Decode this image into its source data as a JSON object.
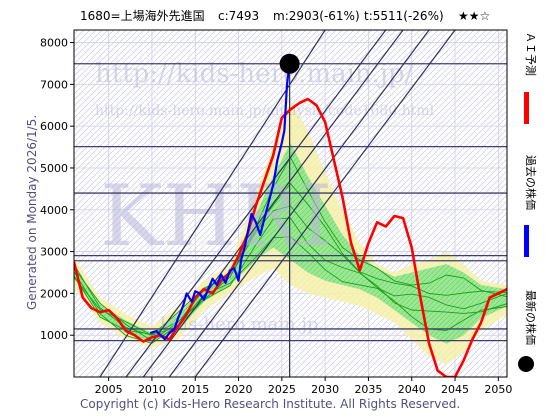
{
  "header": {
    "title": "1680=上場海外先進国",
    "current": "c:7493",
    "middle": "m:2903(-61%)",
    "target": "t:5511(-26%)",
    "stars": "★★☆"
  },
  "generated_label": "Generated on Monday 2026/1/5.",
  "copyright": "Copyright (c) Kids-Hero Research Institute. All Rights Reserved.",
  "watermarks": {
    "main": "KHRI",
    "url1": "http://kids-hero.main.jp/",
    "url2": "http://kids-hero.main.jp/analysis/code1680.html",
    "url3": "kids-hero.main.jp"
  },
  "legend": {
    "ai": "ＡＩ予測",
    "past": "過去の株価",
    "latest": "最新の株価"
  },
  "colors": {
    "ai": "#ff0000",
    "past": "#0000ff",
    "band_yellow": "#f6f0a8",
    "band_green": "#88ee88",
    "green_line": "#1aa01a",
    "hline": "#404070",
    "trend": "#303060"
  },
  "chart_data": {
    "type": "line",
    "xlim": [
      2001,
      2051
    ],
    "ylim": [
      0,
      8300
    ],
    "x_ticks": [
      2005,
      2010,
      2015,
      2020,
      2025,
      2030,
      2035,
      2040,
      2045,
      2050
    ],
    "y_ticks": [
      1000,
      2000,
      3000,
      4000,
      5000,
      6000,
      7000,
      8000
    ],
    "current_point": {
      "x": 2025.9,
      "y": 7493
    },
    "horizontal_levels": [
      7493,
      5511,
      4400,
      2780,
      2903,
      1150,
      870
    ],
    "ai_forecast": [
      [
        2001,
        2750
      ],
      [
        2002,
        1900
      ],
      [
        2003,
        1650
      ],
      [
        2004,
        1550
      ],
      [
        2005,
        1600
      ],
      [
        2006,
        1400
      ],
      [
        2007,
        1100
      ],
      [
        2008,
        1000
      ],
      [
        2009,
        850
      ],
      [
        2010,
        950
      ],
      [
        2011,
        1000
      ],
      [
        2012,
        900
      ],
      [
        2013,
        1200
      ],
      [
        2014,
        1500
      ],
      [
        2015,
        1900
      ],
      [
        2016,
        2100
      ],
      [
        2017,
        2000
      ],
      [
        2018,
        2300
      ],
      [
        2019,
        2500
      ],
      [
        2020,
        2900
      ],
      [
        2021,
        3400
      ],
      [
        2022,
        4100
      ],
      [
        2023,
        4700
      ],
      [
        2024,
        5300
      ],
      [
        2025,
        6200
      ],
      [
        2026,
        6400
      ],
      [
        2027,
        6550
      ],
      [
        2028,
        6650
      ],
      [
        2029,
        6500
      ],
      [
        2030,
        6100
      ],
      [
        2031,
        5200
      ],
      [
        2032,
        4300
      ],
      [
        2033,
        3200
      ],
      [
        2034,
        2550
      ],
      [
        2035,
        3200
      ],
      [
        2036,
        3700
      ],
      [
        2037,
        3600
      ],
      [
        2038,
        3850
      ],
      [
        2039,
        3800
      ],
      [
        2040,
        3100
      ],
      [
        2041,
        1900
      ],
      [
        2042,
        800
      ],
      [
        2043,
        150
      ],
      [
        2044,
        0
      ],
      [
        2045,
        0
      ],
      [
        2046,
        400
      ],
      [
        2047,
        900
      ],
      [
        2048,
        1300
      ],
      [
        2049,
        1900
      ],
      [
        2050,
        2000
      ],
      [
        2051,
        2100
      ]
    ],
    "past_prices": [
      [
        2009.8,
        1050
      ],
      [
        2010.5,
        1100
      ],
      [
        2011,
        1000
      ],
      [
        2011.5,
        900
      ],
      [
        2012,
        1050
      ],
      [
        2012.6,
        1150
      ],
      [
        2013,
        1400
      ],
      [
        2013.6,
        1700
      ],
      [
        2014,
        2000
      ],
      [
        2014.6,
        1800
      ],
      [
        2015,
        2050
      ],
      [
        2015.5,
        2000
      ],
      [
        2016,
        1850
      ],
      [
        2016.5,
        2100
      ],
      [
        2017,
        2350
      ],
      [
        2017.5,
        2200
      ],
      [
        2018,
        2450
      ],
      [
        2018.5,
        2250
      ],
      [
        2019,
        2550
      ],
      [
        2019.5,
        2600
      ],
      [
        2020,
        2300
      ],
      [
        2020.3,
        2800
      ],
      [
        2020.7,
        3100
      ],
      [
        2021,
        3400
      ],
      [
        2021.5,
        3900
      ],
      [
        2022,
        3700
      ],
      [
        2022.5,
        3400
      ],
      [
        2023,
        3800
      ],
      [
        2023.5,
        4200
      ],
      [
        2024,
        4600
      ],
      [
        2024.5,
        5200
      ],
      [
        2025,
        5600
      ],
      [
        2025.3,
        5900
      ],
      [
        2025.6,
        7000
      ],
      [
        2025.9,
        7493
      ]
    ],
    "band_outer_upper": [
      [
        2001,
        2850
      ],
      [
        2004,
        1900
      ],
      [
        2007,
        1500
      ],
      [
        2010,
        1200
      ],
      [
        2013,
        1700
      ],
      [
        2016,
        2300
      ],
      [
        2019,
        2700
      ],
      [
        2022,
        4400
      ],
      [
        2024,
        5500
      ],
      [
        2026,
        6600
      ],
      [
        2028,
        5900
      ],
      [
        2030,
        4900
      ],
      [
        2032,
        4000
      ],
      [
        2034,
        3200
      ],
      [
        2036,
        2700
      ],
      [
        2038,
        2500
      ],
      [
        2040,
        2700
      ],
      [
        2042,
        2800
      ],
      [
        2044,
        3000
      ],
      [
        2046,
        2700
      ],
      [
        2048,
        2300
      ],
      [
        2051,
        2200
      ]
    ],
    "band_outer_lower": [
      [
        2001,
        2150
      ],
      [
        2004,
        1300
      ],
      [
        2007,
        900
      ],
      [
        2010,
        700
      ],
      [
        2013,
        900
      ],
      [
        2016,
        1600
      ],
      [
        2019,
        2000
      ],
      [
        2022,
        2400
      ],
      [
        2024,
        2600
      ],
      [
        2026,
        2200
      ],
      [
        2028,
        2000
      ],
      [
        2030,
        1900
      ],
      [
        2032,
        1800
      ],
      [
        2034,
        1700
      ],
      [
        2036,
        1500
      ],
      [
        2038,
        1300
      ],
      [
        2040,
        900
      ],
      [
        2042,
        500
      ],
      [
        2044,
        300
      ],
      [
        2046,
        600
      ],
      [
        2048,
        1100
      ],
      [
        2051,
        1500
      ]
    ],
    "band_inner_upper": [
      [
        2001,
        2650
      ],
      [
        2004,
        1750
      ],
      [
        2007,
        1350
      ],
      [
        2010,
        1050
      ],
      [
        2013,
        1500
      ],
      [
        2016,
        2100
      ],
      [
        2019,
        2500
      ],
      [
        2022,
        3900
      ],
      [
        2024,
        4800
      ],
      [
        2026,
        5600
      ],
      [
        2028,
        4800
      ],
      [
        2030,
        4100
      ],
      [
        2032,
        3400
      ],
      [
        2034,
        2900
      ],
      [
        2036,
        2600
      ],
      [
        2038,
        2400
      ],
      [
        2040,
        2500
      ],
      [
        2042,
        2600
      ],
      [
        2044,
        2700
      ],
      [
        2046,
        2500
      ],
      [
        2048,
        2200
      ],
      [
        2051,
        2100
      ]
    ],
    "band_inner_lower": [
      [
        2001,
        2350
      ],
      [
        2004,
        1450
      ],
      [
        2007,
        1050
      ],
      [
        2010,
        850
      ],
      [
        2013,
        1100
      ],
      [
        2016,
        1800
      ],
      [
        2019,
        2200
      ],
      [
        2022,
        2800
      ],
      [
        2024,
        3100
      ],
      [
        2026,
        2800
      ],
      [
        2028,
        2500
      ],
      [
        2030,
        2300
      ],
      [
        2032,
        2200
      ],
      [
        2034,
        2100
      ],
      [
        2036,
        1900
      ],
      [
        2038,
        1600
      ],
      [
        2040,
        1300
      ],
      [
        2042,
        1000
      ],
      [
        2044,
        800
      ],
      [
        2046,
        1000
      ],
      [
        2048,
        1400
      ],
      [
        2051,
        1700
      ]
    ],
    "trend_lines": [
      [
        [
          2007,
          0
        ],
        [
          2037,
          8300
        ]
      ],
      [
        [
          2009,
          0
        ],
        [
          2039,
          8300
        ]
      ],
      [
        [
          2012,
          0
        ],
        [
          2042,
          8300
        ]
      ],
      [
        [
          2015,
          0
        ],
        [
          2045,
          8300
        ]
      ],
      [
        [
          2004,
          0
        ],
        [
          2030,
          8300
        ]
      ]
    ]
  }
}
